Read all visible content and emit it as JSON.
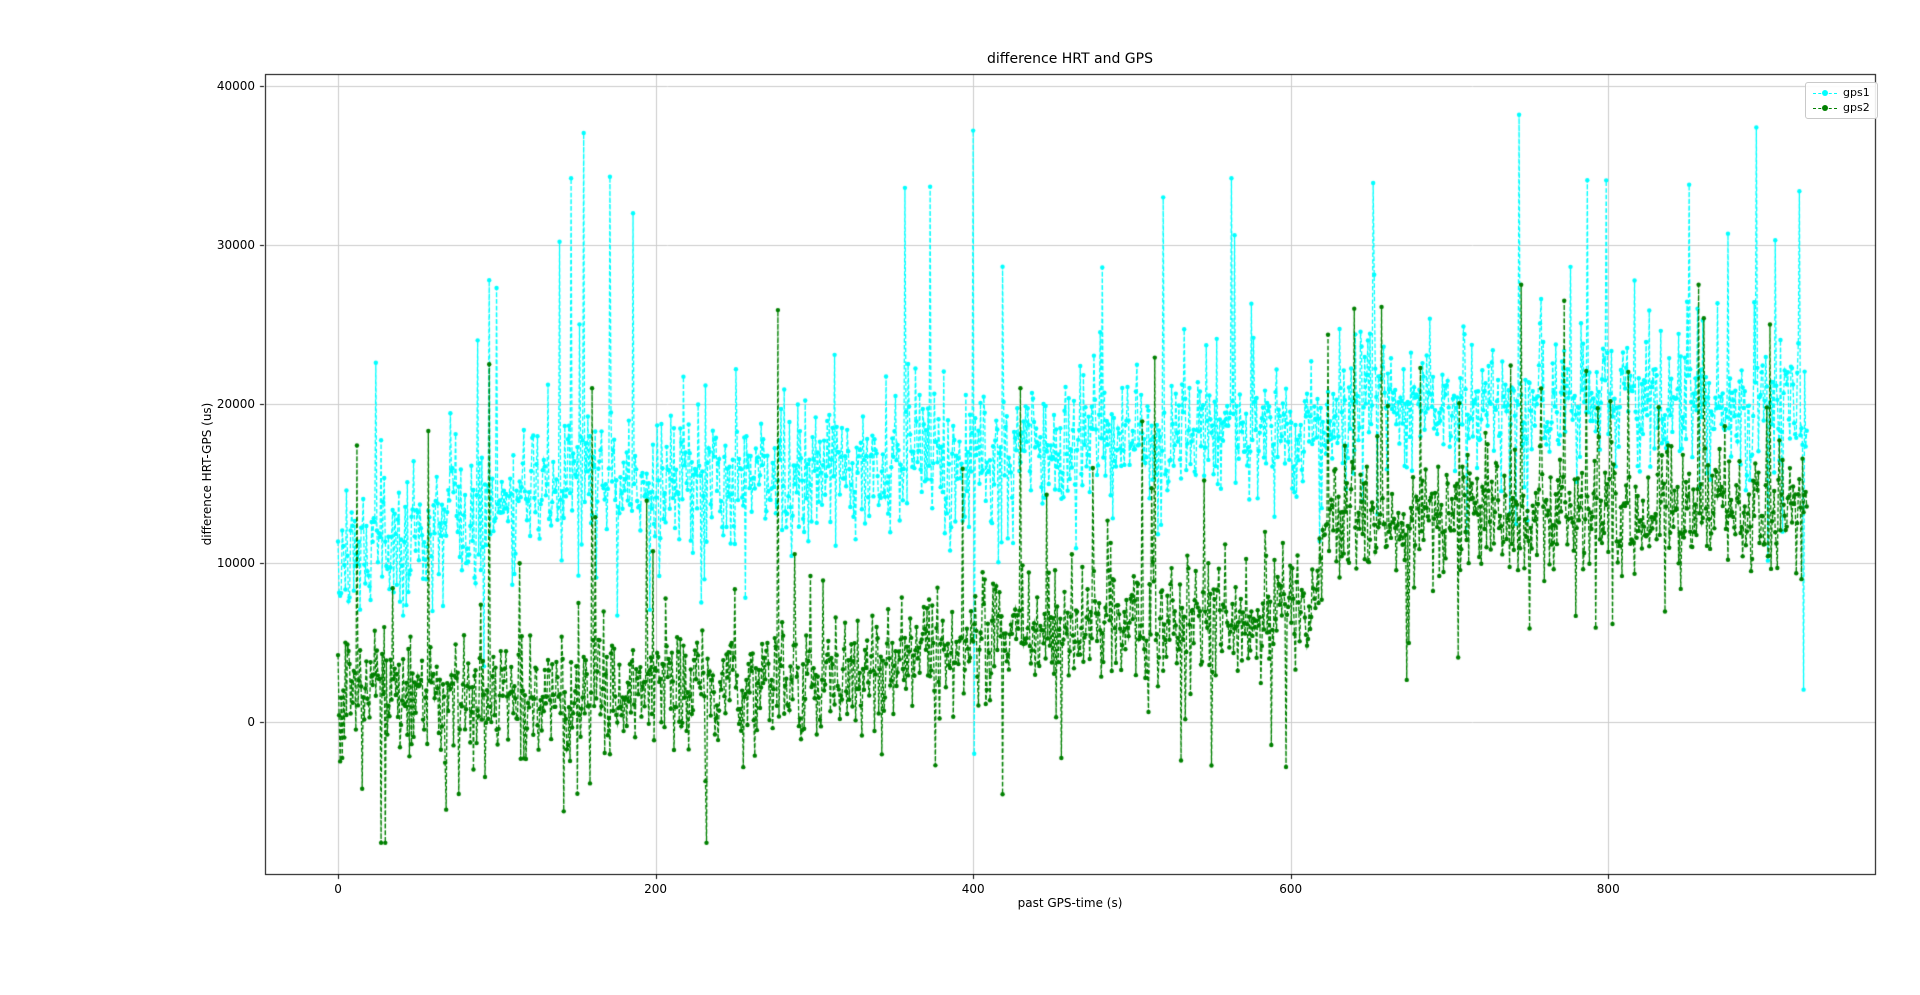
{
  "figure": {
    "background": "#ffffff"
  },
  "chart_data": {
    "type": "line",
    "title": "difference HRT and GPS",
    "xlabel": "past GPS-time (s)",
    "ylabel": "difference HRT-GPS (us)",
    "xlim": [
      -46,
      968
    ],
    "ylim": [
      -9560,
      40760
    ],
    "xticks": [
      0,
      200,
      400,
      600,
      800
    ],
    "yticks": [
      0,
      10000,
      20000,
      30000,
      40000
    ],
    "grid": true,
    "grid_color": "#cccccc",
    "spine_color": "#000000",
    "legend": {
      "position": "upper-right",
      "edge_color": "#c9c9c9"
    },
    "series": [
      {
        "name": "gps1",
        "color": "#00ffff",
        "marker": "circle",
        "linestyle": "dashed",
        "x_start": 0,
        "x_end": 925,
        "n_points": 1400,
        "seed": 1337,
        "baseline_x": [
          0,
          60,
          140,
          200,
          300,
          420,
          600,
          640,
          925
        ],
        "baseline_y": [
          10000,
          12800,
          15000,
          14500,
          15500,
          16800,
          18500,
          20000,
          20000
        ],
        "noise_sigma": 2000,
        "spike_up_prob": 0.09,
        "spike_up_scale": 3800,
        "spike_down_prob": 0.07,
        "spike_down_scale": 3200,
        "y_min": -2000,
        "y_max": 38300,
        "notable_points": [
          [
            24,
            22600
          ],
          [
            100,
            27300
          ],
          [
            147,
            34200
          ],
          [
            171,
            34300
          ],
          [
            186,
            32000
          ],
          [
            357,
            33600
          ],
          [
            400,
            37200
          ],
          [
            520,
            33000
          ],
          [
            563,
            34200
          ],
          [
            652,
            33900
          ],
          [
            744,
            38200
          ],
          [
            851,
            33800
          ],
          [
            893,
            37400
          ],
          [
            905,
            30300
          ]
        ]
      },
      {
        "name": "gps2",
        "color": "#008000",
        "marker": "circle",
        "linestyle": "dashed",
        "x_start": 0,
        "x_end": 925,
        "n_points": 1400,
        "seed": 7021,
        "baseline_x": [
          0,
          300,
          380,
          480,
          612,
          622,
          700,
          925
        ],
        "baseline_y": [
          1900,
          2300,
          4500,
          6200,
          6800,
          12500,
          13000,
          13500
        ],
        "noise_sigma": 1900,
        "spike_up_prob": 0.07,
        "spike_up_scale": 3800,
        "spike_down_prob": 0.1,
        "spike_down_scale": 2600,
        "y_min": -7600,
        "y_max": 27500,
        "notable_points": [
          [
            12,
            17400
          ],
          [
            30,
            -7600
          ],
          [
            57,
            18300
          ],
          [
            95,
            22500
          ],
          [
            160,
            21000
          ],
          [
            430,
            21000
          ],
          [
            640,
            26000
          ],
          [
            745,
            27500
          ],
          [
            772,
            26500
          ],
          [
            860,
            25400
          ],
          [
            902,
            25000
          ]
        ]
      }
    ]
  }
}
